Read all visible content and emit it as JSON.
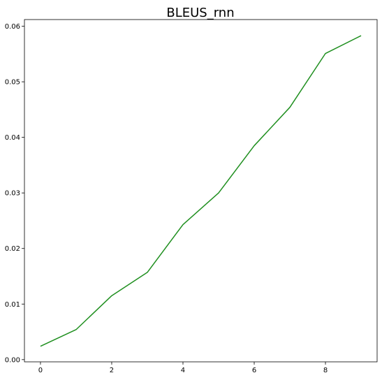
{
  "chart_data": {
    "type": "line",
    "title": "BLEUS_rnn",
    "xlabel": "",
    "ylabel": "",
    "x": [
      0,
      1,
      2,
      3,
      4,
      5,
      6,
      7,
      8,
      9
    ],
    "series": [
      {
        "values": [
          0.0024,
          0.0054,
          0.0115,
          0.0157,
          0.0243,
          0.03,
          0.0385,
          0.0454,
          0.0551,
          0.0583
        ],
        "color": "#1f8f1f"
      }
    ],
    "xlim": [
      -0.45,
      9.45
    ],
    "ylim": [
      -0.0004,
      0.0612
    ],
    "xticks": [
      0,
      2,
      4,
      6,
      8
    ],
    "xtick_labels": [
      "0",
      "2",
      "4",
      "6",
      "8"
    ],
    "yticks": [
      0.0,
      0.01,
      0.02,
      0.03,
      0.04,
      0.05,
      0.06
    ],
    "ytick_labels": [
      "0.00",
      "0.01",
      "0.02",
      "0.03",
      "0.04",
      "0.05",
      "0.06"
    ],
    "grid": false,
    "legend": "none"
  }
}
